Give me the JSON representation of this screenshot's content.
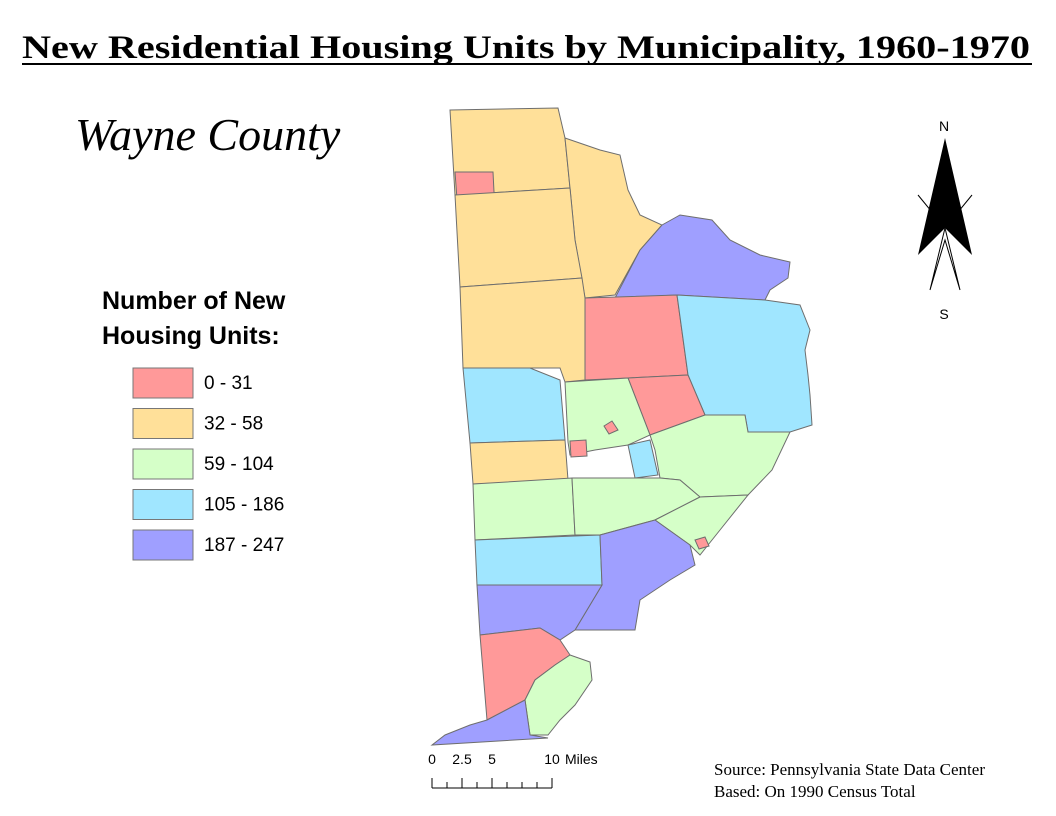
{
  "title": "New Residential Housing Units by Municipality, 1960-1970",
  "region": "Wayne County",
  "legend": {
    "title_lines": [
      "Number of New",
      "Housing Units:"
    ],
    "items": [
      {
        "label": "0 - 31",
        "color": "#ff9999"
      },
      {
        "label": "32 - 58",
        "color": "#ffe099"
      },
      {
        "label": "59 - 104",
        "color": "#d5ffc8"
      },
      {
        "label": "105 - 186",
        "color": "#a0e6ff"
      },
      {
        "label": "187 - 247",
        "color": "#9f9fff"
      }
    ]
  },
  "north_arrow": {
    "north": "N",
    "south": "S"
  },
  "scale_bar": {
    "ticks": [
      0,
      2.5,
      5,
      10
    ],
    "unit": "Miles"
  },
  "source": [
    "Source: Pennsylvania State Data Center",
    "Based: On 1990 Census Total"
  ]
}
